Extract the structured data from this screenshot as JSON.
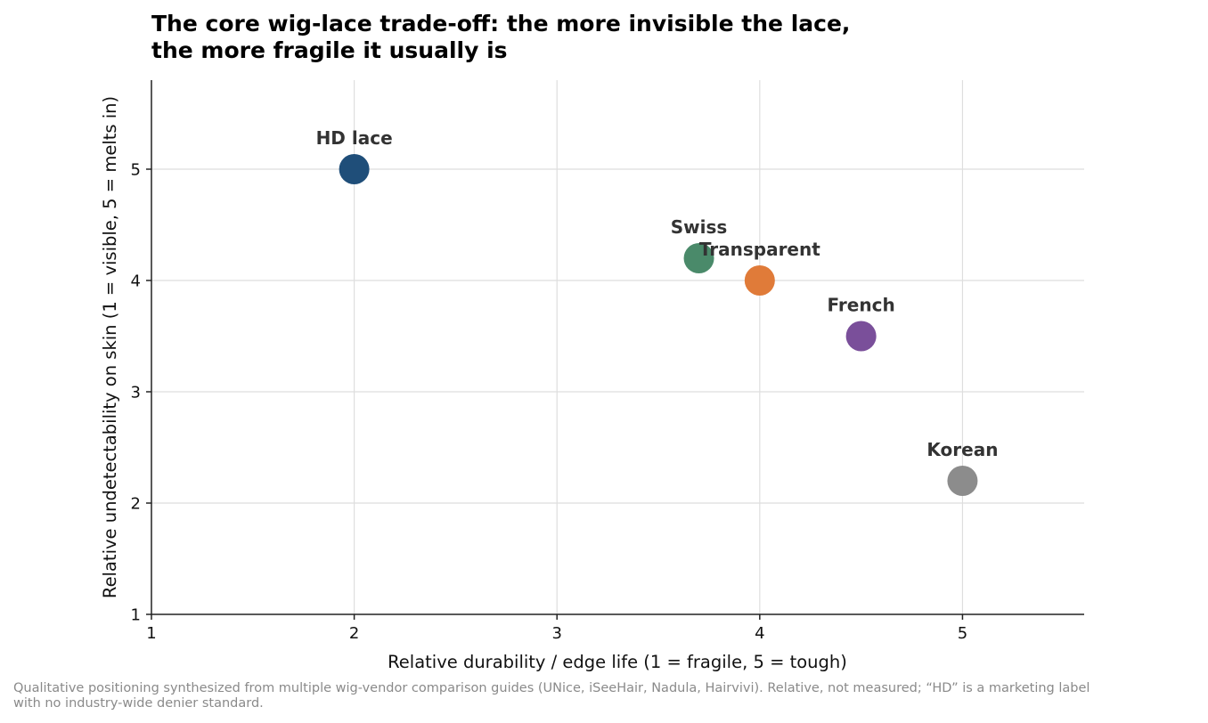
{
  "chart_data": {
    "type": "scatter",
    "title_lines": [
      "The core wig-lace trade-off: the more invisible the lace,",
      "the more fragile it usually is"
    ],
    "xlabel": "Relative durability / edge life  (1 = fragile, 5 = tough)",
    "ylabel": "Relative undetectability on skin  (1 = visible, 5 = melts in)",
    "xlim": [
      1,
      5.6
    ],
    "ylim": [
      1,
      5.8
    ],
    "xticks": [
      "1",
      "2",
      "3",
      "4",
      "5"
    ],
    "yticks": [
      "1",
      "2",
      "3",
      "4",
      "5"
    ],
    "grid": true,
    "points": [
      {
        "label": "HD lace",
        "x": 2.0,
        "y": 5.0,
        "color": "#1f4e79"
      },
      {
        "label": "Swiss",
        "x": 3.7,
        "y": 4.2,
        "color": "#4a8a6a"
      },
      {
        "label": "Transparent",
        "x": 4.0,
        "y": 4.0,
        "color": "#e07b39"
      },
      {
        "label": "French",
        "x": 4.5,
        "y": 3.5,
        "color": "#7a4f9a"
      },
      {
        "label": "Korean",
        "x": 5.0,
        "y": 2.2,
        "color": "#8c8c8c"
      }
    ],
    "footnote_lines": [
      "Qualitative positioning synthesized from multiple wig-vendor comparison guides (UNice, iSeeHair, Nadula, Hairvivi). Relative, not measured; “HD” is a marketing label",
      "with no industry-wide denier standard."
    ]
  }
}
